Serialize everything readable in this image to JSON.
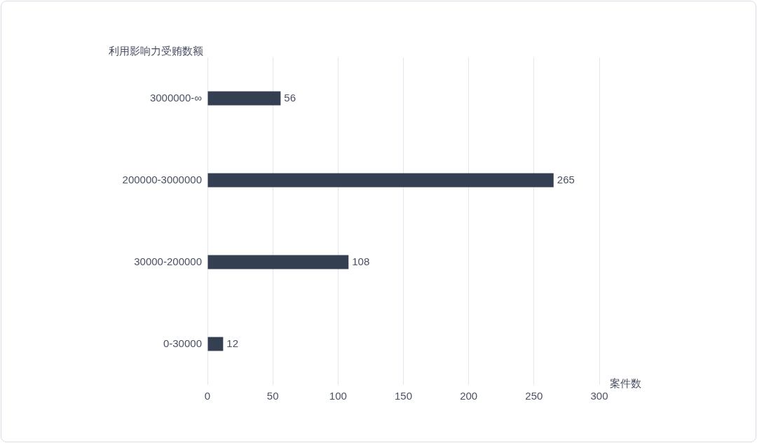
{
  "chart_data": {
    "type": "bar",
    "orientation": "horizontal",
    "ylabel": "利用影响力受贿数额",
    "xlabel": "案件数",
    "categories": [
      "3000000-∞",
      "200000-3000000",
      "30000-200000",
      "0-30000"
    ],
    "values": [
      56,
      265,
      108,
      12
    ],
    "color": "#353f52",
    "xlim": [
      0,
      300
    ],
    "xticks": [
      0,
      50,
      100,
      150,
      200,
      250,
      300
    ],
    "grid": "x",
    "legend": false,
    "data_labels": true
  }
}
